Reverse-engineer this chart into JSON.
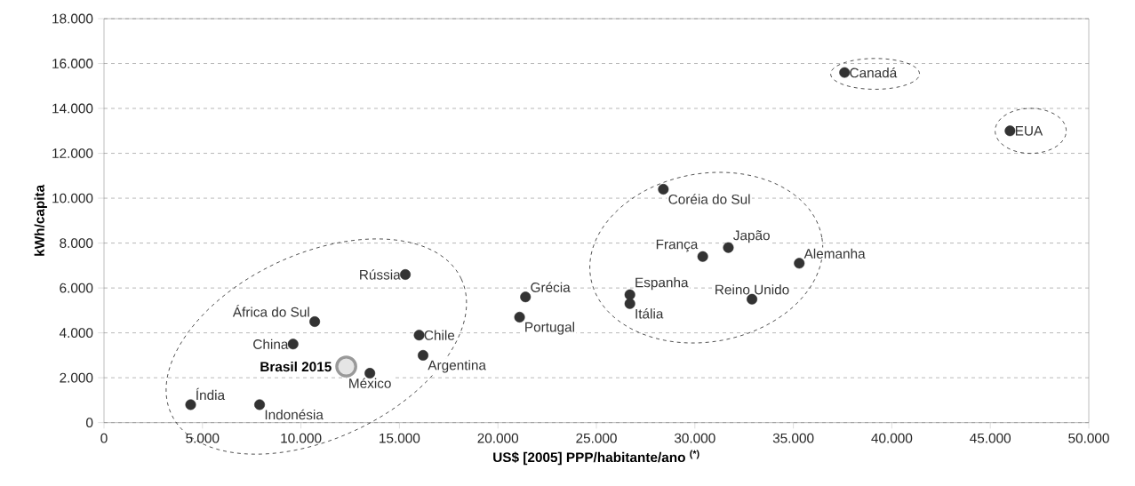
{
  "chart_data": {
    "type": "scatter",
    "xlabel": "US$ [2005] PPP/habitante/ano $^{(*)}$",
    "ylabel": "kWh/capita",
    "xlim": [
      0,
      50000
    ],
    "ylim": [
      0,
      18000
    ],
    "xticks": [
      0,
      {
        "value": 5000,
        "label": "5.000"
      },
      {
        "value": 10000,
        "label": "10.000"
      },
      {
        "value": 15000,
        "label": "15.000"
      },
      {
        "value": 20000,
        "label": "20.000"
      },
      {
        "value": 25000,
        "label": "25.000"
      },
      {
        "value": 30000,
        "label": "30.000"
      },
      {
        "value": 35000,
        "label": "35.000"
      },
      {
        "value": 40000,
        "label": "40.000"
      },
      {
        "value": 45000,
        "label": "45.000"
      },
      {
        "value": 50000,
        "label": "50.000"
      }
    ],
    "yticks": [
      0,
      {
        "value": 2000,
        "label": "2.000"
      },
      {
        "value": 4000,
        "label": "4.000"
      },
      {
        "value": 6000,
        "label": "6.000"
      },
      {
        "value": 8000,
        "label": "8.000"
      },
      {
        "value": 10000,
        "label": "10.000"
      },
      {
        "value": 12000,
        "label": "12.000"
      },
      {
        "value": 14000,
        "label": "14.000"
      },
      {
        "value": 16000,
        "label": "16.000"
      },
      {
        "value": 18000,
        "label": "18.000"
      }
    ],
    "grid": "y",
    "series": [
      {
        "color": "#333333",
        "x": [
          4400,
          7900,
          9600,
          10700,
          13500,
          15300,
          16000,
          16200,
          21400,
          21100,
          26700,
          26700,
          28400,
          30400,
          31700,
          32900,
          35300,
          37600,
          46000
        ],
        "values": [
          800,
          800,
          3500,
          4500,
          2200,
          6600,
          3900,
          3000,
          5600,
          4700,
          5700,
          5300,
          10400,
          7400,
          7800,
          5500,
          7100,
          15600,
          13000
        ]
      },
      {
        "name": "Brasil 2015",
        "color": "#999999",
        "x": [
          12300
        ],
        "values": [
          2500
        ]
      }
    ],
    "annotations": [
      {
        "text": "Índia",
        "x": 4400,
        "y": 800
      },
      {
        "text": "Indonésia",
        "x": 7900,
        "y": 800
      },
      {
        "text": "China",
        "x": 9600,
        "y": 3500
      },
      {
        "text": "África do Sul",
        "x": 10700,
        "y": 4500
      },
      {
        "text": "México",
        "x": 13500,
        "y": 2200
      },
      {
        "text": "Rússia",
        "x": 15300,
        "y": 6600
      },
      {
        "text": "Chile",
        "x": 16000,
        "y": 3900
      },
      {
        "text": "Argentina",
        "x": 16200,
        "y": 3000
      },
      {
        "text": "Grécia",
        "x": 21400,
        "y": 5600
      },
      {
        "text": "Portugal",
        "x": 21100,
        "y": 4700
      },
      {
        "text": "Espanha",
        "x": 26700,
        "y": 5700
      },
      {
        "text": "Itália",
        "x": 26700,
        "y": 5300
      },
      {
        "text": "Coréia do Sul",
        "x": 28400,
        "y": 10400
      },
      {
        "text": "França",
        "x": 30400,
        "y": 7400
      },
      {
        "text": "Japão",
        "x": 31700,
        "y": 7800
      },
      {
        "text": "Reino Unido",
        "x": 32900,
        "y": 5500
      },
      {
        "text": "Alemanha",
        "x": 35300,
        "y": 7100
      },
      {
        "text": "Canadá",
        "x": 37600,
        "y": 15600
      },
      {
        "text": "EUA",
        "x": 46000,
        "y": 13000
      }
    ]
  }
}
